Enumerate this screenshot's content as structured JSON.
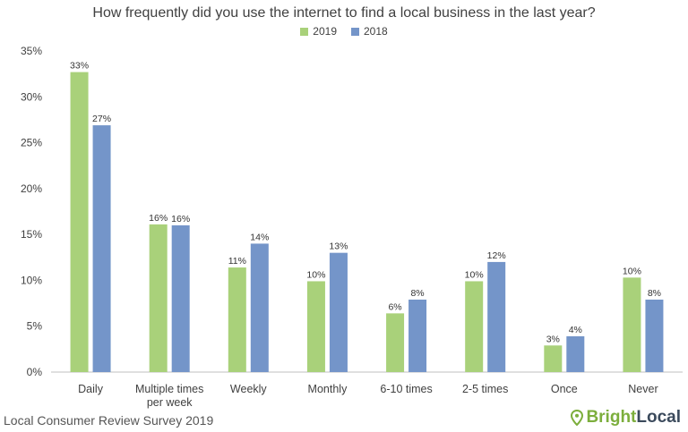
{
  "chart_data": {
    "type": "bar",
    "title": "How frequently did you use the internet to find a local business in the last year?",
    "categories": [
      "Daily",
      "Multiple times per week",
      "Weekly",
      "Monthly",
      "6-10 times",
      "2-5 times",
      "Once",
      "Never"
    ],
    "category_lines": [
      [
        "Daily"
      ],
      [
        "Multiple times",
        "per week"
      ],
      [
        "Weekly"
      ],
      [
        "Monthly"
      ],
      [
        "6-10 times"
      ],
      [
        "2-5 times"
      ],
      [
        "Once"
      ],
      [
        "Never"
      ]
    ],
    "series": [
      {
        "name": "2019",
        "color": "#a9d17a",
        "values": [
          32.7,
          16.1,
          11.4,
          9.9,
          6.4,
          9.9,
          2.9,
          10.3
        ],
        "labels": [
          "33%",
          "16%",
          "11%",
          "10%",
          "6%",
          "10%",
          "3%",
          "10%"
        ]
      },
      {
        "name": "2018",
        "color": "#7495c9",
        "values": [
          26.9,
          16.0,
          14.0,
          13.0,
          7.9,
          12.0,
          3.9,
          7.9
        ],
        "labels": [
          "27%",
          "16%",
          "14%",
          "13%",
          "8%",
          "12%",
          "4%",
          "8%"
        ]
      }
    ],
    "ylim": [
      0,
      35
    ],
    "yticks": [
      "0%",
      "5%",
      "10%",
      "15%",
      "20%",
      "25%",
      "30%",
      "35%"
    ],
    "grid": false,
    "legend_position": "top-center"
  },
  "footer": {
    "source": "Local Consumer Review Survey 2019"
  },
  "brand": {
    "part1": "Bright",
    "part2": "Local",
    "icon": "location-pin-icon"
  }
}
